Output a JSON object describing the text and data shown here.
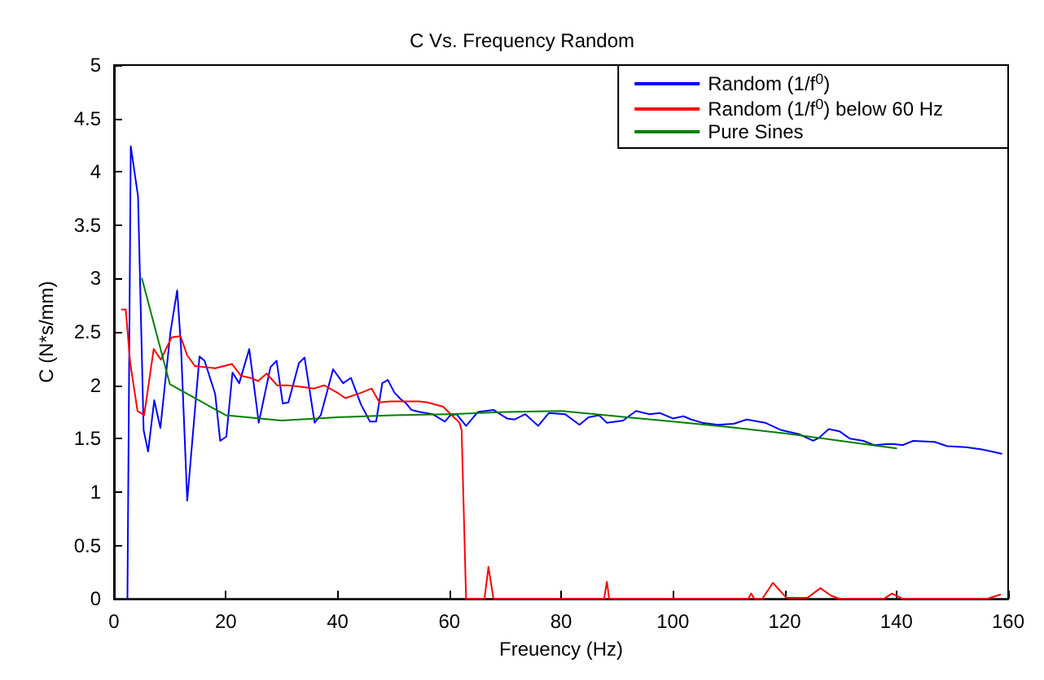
{
  "chart_data": {
    "type": "line",
    "title": "C Vs. Frequency Random",
    "xlabel": "Freuency (Hz)",
    "ylabel": "C (N*s/mm)",
    "xlim": [
      0,
      160
    ],
    "xticks": [
      0,
      20,
      40,
      60,
      80,
      100,
      120,
      140,
      160
    ],
    "ylim": [
      0,
      5
    ],
    "yticks": [
      0,
      0.5,
      1,
      1.5,
      2,
      2.5,
      3,
      3.5,
      4,
      4.5,
      5
    ],
    "grid": false,
    "legend": "top right",
    "marker": "none",
    "line_style": "solid",
    "series": [
      {
        "name": "Random (1/f$^{0}$)",
        "color": "#0000ff",
        "x": [
          2.4,
          3,
          4.3,
          5.3,
          6.1,
          7.2,
          8.3,
          10.1,
          11.3,
          12,
          13.1,
          15.3,
          16.2,
          18.1,
          19,
          20.1,
          21.2,
          22.4,
          24.2,
          25.9,
          28,
          29.1,
          30.2,
          31.2,
          33.1,
          34.1,
          35.9,
          37,
          39.2,
          41,
          42.4,
          44.2,
          45.8,
          46.9,
          48,
          49,
          50.2,
          51.3,
          52.3,
          53.2,
          54.7,
          57,
          59.2,
          60.2,
          61.3,
          63,
          65.1,
          67.9,
          70.3,
          71.7,
          73.6,
          75.9,
          77.8,
          80.7,
          83.3,
          84.9,
          86.8,
          88.2,
          91.1,
          93.4,
          95.8,
          97.7,
          100,
          101.9,
          103.3,
          105.2,
          108,
          110.9,
          113.2,
          116.5,
          119.4,
          122.7,
          125.1,
          126.2,
          127.9,
          129.8,
          131.7,
          134.1,
          136,
          138.3,
          139.7,
          141.1,
          143,
          146.8,
          149.1,
          152.4,
          155.3,
          158.8
        ],
        "values": [
          0,
          4.24,
          3.77,
          1.58,
          1.38,
          1.86,
          1.6,
          2.5,
          2.89,
          2.35,
          0.92,
          2.27,
          2.23,
          1.92,
          1.48,
          1.52,
          2.12,
          2.02,
          2.34,
          1.65,
          2.17,
          2.23,
          1.83,
          1.84,
          2.21,
          2.26,
          1.65,
          1.72,
          2.15,
          2.02,
          2.07,
          1.82,
          1.66,
          1.66,
          2.02,
          2.05,
          1.93,
          1.87,
          1.83,
          1.77,
          1.75,
          1.73,
          1.66,
          1.72,
          1.73,
          1.62,
          1.75,
          1.77,
          1.69,
          1.68,
          1.73,
          1.62,
          1.74,
          1.73,
          1.63,
          1.7,
          1.72,
          1.65,
          1.67,
          1.76,
          1.73,
          1.74,
          1.69,
          1.71,
          1.68,
          1.65,
          1.63,
          1.64,
          1.68,
          1.65,
          1.58,
          1.54,
          1.48,
          1.51,
          1.59,
          1.57,
          1.5,
          1.48,
          1.44,
          1.45,
          1.45,
          1.44,
          1.48,
          1.47,
          1.43,
          1.42,
          1.4,
          1.36
        ]
      },
      {
        "name": "Random (1/f$^{0}$) below 60 Hz",
        "color": "#ff0000",
        "x": [
          1.4,
          2.1,
          2.9,
          4.2,
          5.4,
          7.1,
          8.4,
          10.3,
          11.9,
          13.1,
          14.5,
          16.4,
          18.1,
          21.1,
          22.7,
          24.4,
          25.8,
          27.3,
          29.2,
          31,
          32.9,
          35.8,
          37.6,
          40,
          41.4,
          44.2,
          46.1,
          47.5,
          49.4,
          54.6,
          56.1,
          58.9,
          61.8,
          62.2,
          63,
          66.3,
          67,
          67.9,
          87.7,
          88.2,
          88.6,
          113.5,
          114,
          114.6,
          116,
          117.9,
          120.3,
          124.1,
          126.4,
          128.3,
          129.8,
          137.8,
          139.2,
          141.1,
          156.2,
          158.6
        ],
        "values": [
          2.71,
          2.71,
          2.21,
          1.76,
          1.72,
          2.34,
          2.24,
          2.45,
          2.46,
          2.28,
          2.18,
          2.17,
          2.16,
          2.2,
          2.09,
          2.07,
          2.04,
          2.11,
          2,
          2,
          1.99,
          1.97,
          2,
          1.93,
          1.88,
          1.93,
          1.97,
          1.84,
          1.85,
          1.85,
          1.84,
          1.8,
          1.65,
          1.58,
          0,
          0,
          0.3,
          0,
          0,
          0.16,
          0,
          0,
          0.05,
          0,
          0,
          0.15,
          0.01,
          0.01,
          0.1,
          0.03,
          0,
          0,
          0.05,
          0,
          0,
          0.04
        ]
      },
      {
        "name": "Pure Sines",
        "color": "#008000",
        "x": [
          5,
          10,
          20,
          30,
          40,
          50,
          60,
          70,
          80,
          90,
          100,
          110,
          120,
          130,
          140
        ],
        "values": [
          3,
          2.01,
          1.72,
          1.67,
          1.7,
          1.72,
          1.73,
          1.75,
          1.76,
          1.71,
          1.66,
          1.61,
          1.55,
          1.48,
          1.41
        ]
      }
    ]
  }
}
